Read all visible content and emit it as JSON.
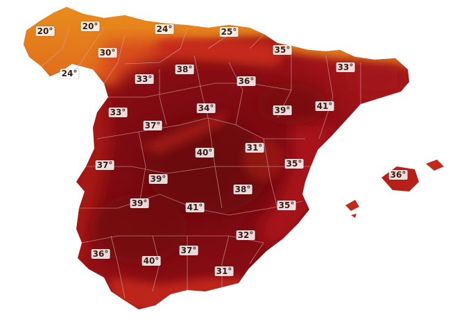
{
  "map": {
    "temperature_labels": [
      {
        "id": "galicia-coast-nw",
        "text": "20°"
      },
      {
        "id": "galicia-north",
        "text": "20°"
      },
      {
        "id": "asturias",
        "text": "24°"
      },
      {
        "id": "basque-country",
        "text": "25°"
      },
      {
        "id": "galicia-inland",
        "text": "30°"
      },
      {
        "id": "galicia-south",
        "text": "24°"
      },
      {
        "id": "navarra",
        "text": "35°"
      },
      {
        "id": "catalonia-north",
        "text": "33°"
      },
      {
        "id": "leon",
        "text": "38°"
      },
      {
        "id": "zamora",
        "text": "33°"
      },
      {
        "id": "burgos",
        "text": "36°"
      },
      {
        "id": "salamanca",
        "text": "33°"
      },
      {
        "id": "valladolid-south",
        "text": "34°"
      },
      {
        "id": "zaragoza",
        "text": "39°"
      },
      {
        "id": "lleida",
        "text": "41°"
      },
      {
        "id": "avila",
        "text": "37°"
      },
      {
        "id": "madrid-area",
        "text": "40°"
      },
      {
        "id": "teruel",
        "text": "31°"
      },
      {
        "id": "extremadura-north",
        "text": "37°"
      },
      {
        "id": "castellon",
        "text": "35°"
      },
      {
        "id": "toledo",
        "text": "39°"
      },
      {
        "id": "cuenca",
        "text": "38°"
      },
      {
        "id": "mallorca",
        "text": "36°"
      },
      {
        "id": "badajoz",
        "text": "39°"
      },
      {
        "id": "ciudad-real",
        "text": "41°"
      },
      {
        "id": "valencia-south",
        "text": "35°"
      },
      {
        "id": "murcia",
        "text": "32°"
      },
      {
        "id": "huelva",
        "text": "36°"
      },
      {
        "id": "jaen",
        "text": "37°"
      },
      {
        "id": "sevilla",
        "text": "40°"
      },
      {
        "id": "granada",
        "text": "31°"
      }
    ],
    "colors": {
      "coolest": "#e8841c",
      "cool": "#d9501c",
      "warm": "#b8201a",
      "hot": "#8c0e14",
      "hottest": "#6e0810",
      "sea": "#ffffff",
      "border": "#c9a3a0"
    }
  }
}
